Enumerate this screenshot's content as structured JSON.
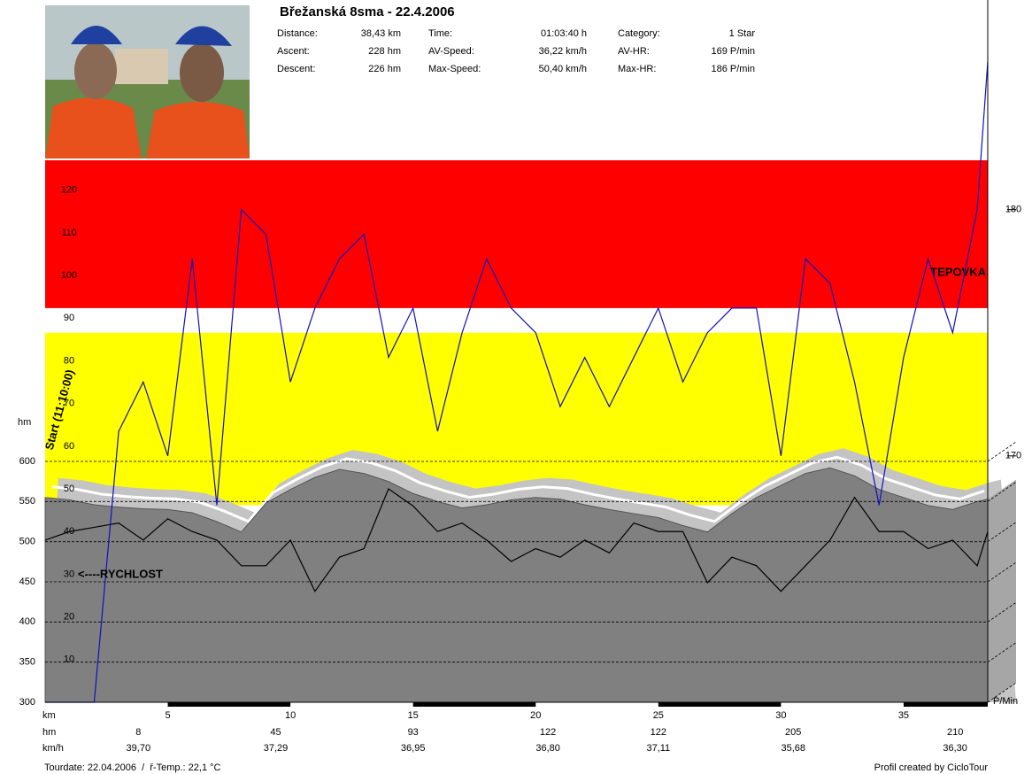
{
  "header": {
    "title": "Břežanská 8sma - 22.4.2006",
    "stats": [
      [
        {
          "label": "Distance:",
          "value": "38,43 km"
        },
        {
          "label": "Time:",
          "value": "01:03:40 h"
        },
        {
          "label": "Category:",
          "value": "1 Star"
        }
      ],
      [
        {
          "label": "Ascent:",
          "value": "228 hm"
        },
        {
          "label": "AV-Speed:",
          "value": "36,22 km/h"
        },
        {
          "label": "AV-HR:",
          "value": "169 P/min"
        }
      ],
      [
        {
          "label": "Descent:",
          "value": "226 hm"
        },
        {
          "label": "Max-Speed:",
          "value": "50,40 km/h"
        },
        {
          "label": "Max-HR:",
          "value": "186 P/min"
        }
      ]
    ]
  },
  "chart_data": {
    "type": "line",
    "x": [
      0,
      1,
      2,
      3,
      4,
      5,
      6,
      7,
      8,
      9,
      10,
      11,
      12,
      13,
      14,
      15,
      16,
      17,
      18,
      19,
      20,
      21,
      22,
      23,
      24,
      25,
      26,
      27,
      28,
      29,
      30,
      31,
      32,
      33,
      34,
      35,
      36,
      37,
      38,
      38.43
    ],
    "xlim": [
      0,
      38.43
    ],
    "xticks": [
      5,
      10,
      15,
      20,
      25,
      30,
      35
    ],
    "xlabel": "km",
    "ylabel": "hm",
    "ylim": [
      300,
      975
    ],
    "yticks": [
      300,
      350,
      400,
      450,
      500,
      550,
      600
    ],
    "y2lim": [
      0,
      127
    ],
    "y2ticks": [
      10,
      20,
      30,
      40,
      50,
      60,
      70,
      80,
      90,
      100,
      110,
      120
    ],
    "y3lim": [
      160,
      182
    ],
    "y3ticks": [
      170,
      180
    ],
    "y3label": "P/Min",
    "series": [
      {
        "color": "#808080",
        "axis": "y",
        "values": [
          555,
          552,
          546,
          543,
          541,
          540,
          536,
          525,
          512,
          548,
          565,
          580,
          590,
          585,
          575,
          560,
          550,
          542,
          546,
          552,
          555,
          553,
          546,
          540,
          535,
          530,
          520,
          512,
          535,
          555,
          570,
          585,
          592,
          582,
          565,
          555,
          545,
          540,
          550,
          553
        ]
      },
      {
        "color": "#000000",
        "axis": "y2",
        "values": [
          38,
          40,
          41,
          42,
          38,
          43,
          40,
          38,
          32,
          32,
          38,
          26,
          34,
          36,
          50,
          46,
          40,
          42,
          38,
          33,
          36,
          34,
          38,
          35,
          42,
          40,
          40,
          28,
          34,
          32,
          26,
          32,
          38,
          48,
          40,
          40,
          36,
          38,
          32,
          40
        ]
      },
      {
        "color": "#1010c0",
        "axis": "y3",
        "values": [
          160,
          160,
          160,
          171,
          173,
          170,
          178,
          168,
          180,
          179,
          173,
          176,
          178,
          179,
          174,
          176,
          171,
          175,
          178,
          176,
          175,
          172,
          174,
          172,
          174,
          176,
          173,
          175,
          176,
          176,
          170,
          178,
          177,
          173,
          168,
          174,
          178,
          175,
          180,
          186
        ]
      }
    ],
    "zones": [
      {
        "label": "TEPOVKA",
        "color": "#ff0000",
        "range": [
          176,
          182
        ]
      },
      {
        "color": "#ffff00",
        "range": [
          168,
          175
        ]
      }
    ],
    "annotations": {
      "start": "Start (11:10:00)",
      "speed": "<----RYCHLOST"
    },
    "summary": {
      "x": [
        3.8,
        9.4,
        15,
        20.5,
        25,
        30.5,
        37.1
      ],
      "rows": [
        {
          "label": "hm",
          "color": "#a00000",
          "values": [
            8,
            45,
            93,
            122,
            122,
            205,
            210
          ]
        },
        {
          "label": "km/h",
          "color": "#000000",
          "values": [
            39.7,
            37.29,
            36.95,
            36.8,
            37.11,
            35.68,
            36.3
          ],
          "value_labels": [
            "39,70",
            "37,29",
            "36,95",
            "36,80",
            "37,11",
            "35,68",
            "36,30"
          ]
        }
      ]
    }
  },
  "footer": {
    "left": "Tourdate: 22.04.2006  /  ř-Temp.: 22,1 °C",
    "right": "Profil created by CicloTour"
  }
}
